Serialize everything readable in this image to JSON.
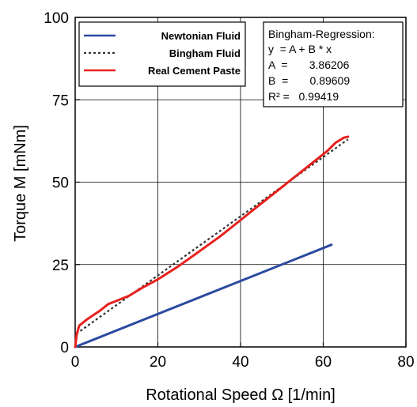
{
  "chart_data": {
    "type": "line",
    "xlabel": "Rotational Speed  Ω [1/min]",
    "ylabel": "Torque  M [mNm]",
    "xlim": [
      0,
      80
    ],
    "ylim": [
      0,
      100
    ],
    "x_ticks": [
      "0",
      "20",
      "40",
      "60",
      "80"
    ],
    "y_ticks": [
      "0",
      "25",
      "50",
      "75",
      "100"
    ],
    "grid": true,
    "legend_position": "top-left",
    "series": [
      {
        "name": "Newtonian Fluid",
        "color": "#2b4aa0",
        "style": "solid",
        "points": [
          [
            0,
            0
          ],
          [
            62,
            31
          ]
        ]
      },
      {
        "name": "Bingham Fluid",
        "color": "#333333",
        "style": "dotted",
        "points": [
          [
            0.3,
            4.0
          ],
          [
            66,
            63.0
          ]
        ]
      },
      {
        "name": "Real Cement Paste",
        "color": "#e8221e",
        "style": "solid",
        "points": [
          [
            0,
            0
          ],
          [
            0.4,
            4
          ],
          [
            1,
            6.5
          ],
          [
            3,
            8.5
          ],
          [
            6,
            11
          ],
          [
            8,
            13
          ],
          [
            10,
            14
          ],
          [
            13,
            15.5
          ],
          [
            16,
            17.8
          ],
          [
            20,
            20.5
          ],
          [
            25,
            24.5
          ],
          [
            30,
            29
          ],
          [
            35,
            33.5
          ],
          [
            40,
            38.5
          ],
          [
            45,
            43.5
          ],
          [
            50,
            48.5
          ],
          [
            55,
            53.5
          ],
          [
            58,
            56.5
          ],
          [
            61,
            59.5
          ],
          [
            63,
            62
          ],
          [
            65,
            63.5
          ],
          [
            66,
            63.8
          ]
        ]
      }
    ],
    "annotation": {
      "lines": [
        "Bingham-Regression:",
        "y  = A + B * x",
        "A  =       3.86206",
        "B  =       0.89609",
        "R² =   0.99419"
      ]
    }
  }
}
